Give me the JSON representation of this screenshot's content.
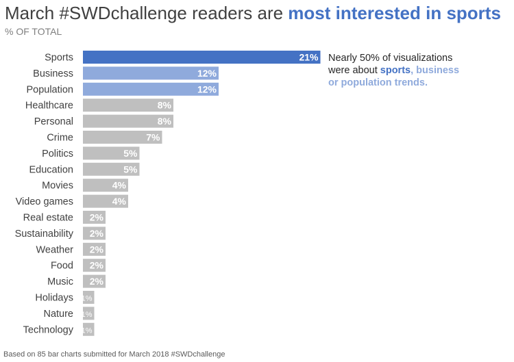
{
  "header": {
    "title_prefix": "March #SWDchallenge readers are ",
    "title_highlight": "most interested in sports",
    "subtitle": "% OF TOTAL"
  },
  "callout": {
    "line1": "Nearly 50% of visualizations",
    "line2_prefix": "were about ",
    "sports": "sports",
    "comma": ",",
    "business": "business",
    "line3": "or population trends."
  },
  "footnote": "Based on 85 bar charts submitted for March 2018 #SWDchallenge",
  "colors": {
    "primary": "#4472c4",
    "secondary": "#8faadc",
    "other": "#bfbfbf"
  },
  "chart_data": {
    "type": "bar",
    "orientation": "horizontal",
    "title": "March #SWDchallenge readers are most interested in sports",
    "subtitle": "% OF TOTAL",
    "categories": [
      "Sports",
      "Business",
      "Population",
      "Healthcare",
      "Personal",
      "Crime",
      "Politics",
      "Education",
      "Movies",
      "Video games",
      "Real estate",
      "Sustainability",
      "Weather",
      "Food",
      "Music",
      "Holidays",
      "Nature",
      "Technology"
    ],
    "values": [
      21,
      12,
      12,
      8,
      8,
      7,
      5,
      5,
      4,
      4,
      2,
      2,
      2,
      2,
      2,
      1,
      1,
      1
    ],
    "value_labels": [
      "21%",
      "12%",
      "12%",
      "8%",
      "8%",
      "7%",
      "5%",
      "5%",
      "4%",
      "4%",
      "2%",
      "2%",
      "2%",
      "2%",
      "2%",
      "1%",
      "1%",
      "1%"
    ],
    "highlight": [
      "primary",
      "secondary",
      "secondary",
      "other",
      "other",
      "other",
      "other",
      "other",
      "other",
      "other",
      "other",
      "other",
      "other",
      "other",
      "other",
      "other",
      "other",
      "other"
    ],
    "xlim": [
      0,
      21
    ],
    "grid": false,
    "legend": "none"
  }
}
